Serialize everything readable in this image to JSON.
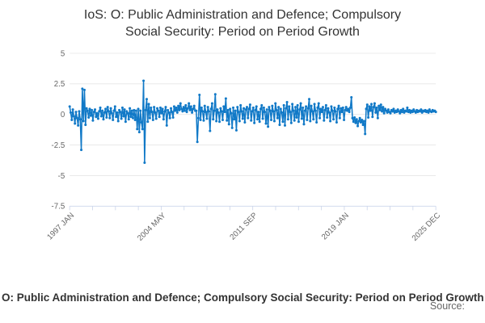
{
  "title": {
    "line1": "IoS: O: Public Administration and Defence; Compulsory",
    "line2": "Social Security: Period on Period Growth"
  },
  "footer": {
    "series_label": "O: Public Administration and Defence; Compulsory Social Security: Period on Period Growth",
    "source_label": "Source:"
  },
  "colors": {
    "series": "#1179c7",
    "grid_line": "#e6e6e6",
    "axis_line": "#ccd6eb",
    "tick_label": "#666666",
    "title_text": "#333333"
  },
  "chart_data": {
    "type": "line",
    "title": "IoS: O: Public Administration and Defence; Compulsory Social Security: Period on Period Growth",
    "series_name": "O: Public Administration and Defence; Compulsory Social Security: Period on Period Growth",
    "xlabel": "",
    "ylabel": "",
    "frequency": "monthly",
    "x_start": "1997 JAN",
    "x_end": "2025 DEC",
    "x_tick_labels": [
      "1997 JAN",
      "2004 MAY",
      "2011 SEP",
      "2019 JAN",
      "2025 DEC"
    ],
    "x_total_ticks": 17,
    "x_label_every_nth_tick": 4,
    "y_ticks": [
      5,
      2.5,
      0,
      -2.5,
      -5,
      -7.5
    ],
    "ylim": [
      -7.5,
      5
    ],
    "grid": "horizontal",
    "legend_position": "bottom-left",
    "marker": "circle",
    "values": [
      0.65,
      0.15,
      -0.45,
      0.4,
      -0.15,
      -0.75,
      0.2,
      -0.3,
      -0.9,
      0.25,
      -0.4,
      -2.9,
      2.1,
      -0.55,
      2.0,
      -0.85,
      0.5,
      0.3,
      -0.25,
      0.45,
      -0.1,
      0.35,
      -0.5,
      0.2,
      0.4,
      -0.2,
      0.1,
      -0.35,
      0.25,
      0.55,
      -0.15,
      0.3,
      -0.4,
      0.15,
      0.45,
      -0.25,
      0.6,
      0.25,
      -0.3,
      0.5,
      0.1,
      -0.45,
      0.3,
      0.65,
      -0.2,
      0.15,
      -0.55,
      0.35,
      0.2,
      -0.35,
      0.55,
      -0.15,
      0.4,
      -0.6,
      0.25,
      0.1,
      -0.4,
      0.5,
      -0.2,
      0.3,
      -0.3,
      0.35,
      -0.45,
      0.3,
      -1.2,
      0.45,
      -1.45,
      0.3,
      -0.65,
      -1.2,
      2.75,
      -3.95,
      0.35,
      1.25,
      -0.6,
      0.85,
      -0.3,
      0.55,
      0.2,
      -0.45,
      0.6,
      0.15,
      -0.35,
      0.5,
      0.3,
      -0.2,
      0.55,
      0.1,
      0.45,
      -0.4,
      0.25,
      0.6,
      -0.9,
      0.35,
      0.15,
      -0.3,
      0.5,
      0.2,
      -0.25,
      0.65,
      0.3,
      0.55,
      0.15,
      0.7,
      0.35,
      0.9,
      0.45,
      0.25,
      0.6,
      0.3,
      0.75,
      0.2,
      0.5,
      0.9,
      0.35,
      0.65,
      0.15,
      0.45,
      0.7,
      0.3,
      0.3,
      -2.25,
      -0.3,
      1.6,
      -0.45,
      0.55,
      0.25,
      -0.5,
      0.7,
      0.2,
      -0.35,
      0.6,
      0.25,
      -1.35,
      0.45,
      0.9,
      -0.4,
      0.3,
      1.65,
      -0.55,
      0.4,
      0.15,
      -0.6,
      0.5,
      0.25,
      -0.45,
      0.65,
      0.2,
      1.3,
      -0.5,
      0.35,
      -0.8,
      0.45,
      0.1,
      -1.1,
      0.55,
      -0.4,
      0.3,
      -1.3,
      0.6,
      0.2,
      -0.55,
      0.75,
      0.25,
      -0.35,
      0.5,
      -0.65,
      0.4,
      0.6,
      -0.3,
      0.45,
      0.8,
      -0.5,
      0.25,
      0.55,
      -0.7,
      0.35,
      0.65,
      -0.4,
      0.2,
      -0.6,
      0.45,
      0.75,
      -0.35,
      0.55,
      0.2,
      -0.75,
      0.4,
      -1.0,
      0.6,
      0.3,
      -0.45,
      0.7,
      0.25,
      -0.55,
      0.9,
      0.35,
      -0.3,
      0.6,
      -0.85,
      0.45,
      0.15,
      -0.6,
      0.75,
      -0.9,
      0.5,
      1.0,
      -0.4,
      0.65,
      0.2,
      -0.7,
      0.85,
      0.3,
      -0.5,
      0.6,
      -0.25,
      0.75,
      -0.6,
      0.4,
      0.9,
      -0.35,
      0.55,
      -0.8,
      0.3,
      0.65,
      -0.45,
      0.5,
      1.25,
      -0.55,
      0.7,
      0.25,
      -0.4,
      0.85,
      0.3,
      -0.65,
      0.55,
      0.9,
      -0.3,
      0.45,
      0.2,
      0.6,
      -0.5,
      0.35,
      0.75,
      -0.25,
      0.5,
      0.15,
      -0.55,
      0.65,
      0.3,
      -0.4,
      0.55,
      0.25,
      -0.65,
      0.45,
      0.7,
      -0.3,
      0.5,
      0.2,
      0.55,
      -0.45,
      0.35,
      0.6,
      0.3,
      0.45,
      0.2,
      0.55,
      1.4,
      -0.3,
      -0.6,
      -0.25,
      -0.7,
      -0.4,
      -0.95,
      -0.55,
      -0.3,
      -0.65,
      -0.45,
      -0.85,
      -0.55,
      -1.6,
      0.45,
      0.8,
      -0.25,
      0.65,
      0.3,
      0.85,
      -0.2,
      0.6,
      0.9,
      0.15,
      0.55,
      -0.3,
      0.7,
      0.35,
      0.8,
      0.25,
      0.6,
      0.1,
      0.45,
      0.3,
      0.15,
      0.4,
      0.2,
      0.1,
      0.35,
      0.25,
      0.45,
      0.15,
      0.3,
      0.2,
      0.4,
      0.25,
      0.1,
      0.35,
      0.2,
      0.45,
      0.15,
      0.3,
      0.25,
      0.55,
      0.2,
      0.35,
      0.15,
      0.3,
      0.2,
      0.4,
      0.25,
      0.15,
      0.35,
      0.2,
      0.3,
      0.25,
      0.4,
      0.15,
      0.3,
      0.25,
      0.35,
      0.2,
      0.3,
      0.15,
      0.4,
      0.25,
      0.2,
      0.35,
      0.25,
      0.3,
      0.2
    ]
  }
}
